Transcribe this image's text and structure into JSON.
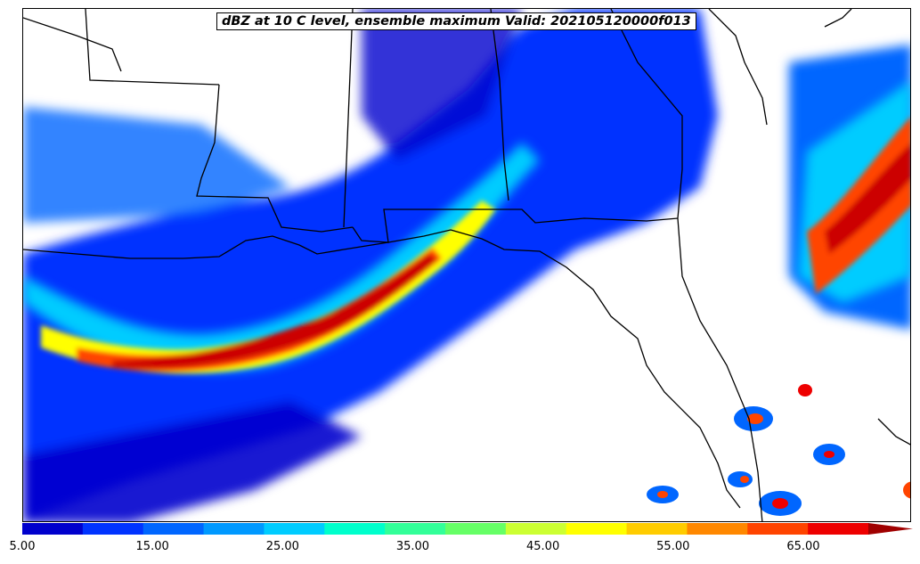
{
  "title": "dBZ at 10 C level, ensemble maximum Valid: 202105120000f013",
  "colorbar": {
    "min": 5,
    "max": 70,
    "step": 5,
    "extend": "max",
    "colors": [
      "#00008b",
      "#0000cd",
      "#0033ff",
      "#0066ff",
      "#0099ff",
      "#00ccff",
      "#00ffcc",
      "#33ff99",
      "#66ff66",
      "#ccff33",
      "#ffff00",
      "#ffcc00",
      "#ff8800",
      "#ff4400",
      "#ee0000",
      "#a00000"
    ],
    "tick_labels": [
      "5.00",
      "15.00",
      "25.00",
      "35.00",
      "45.00",
      "55.00",
      "65.00"
    ]
  }
}
